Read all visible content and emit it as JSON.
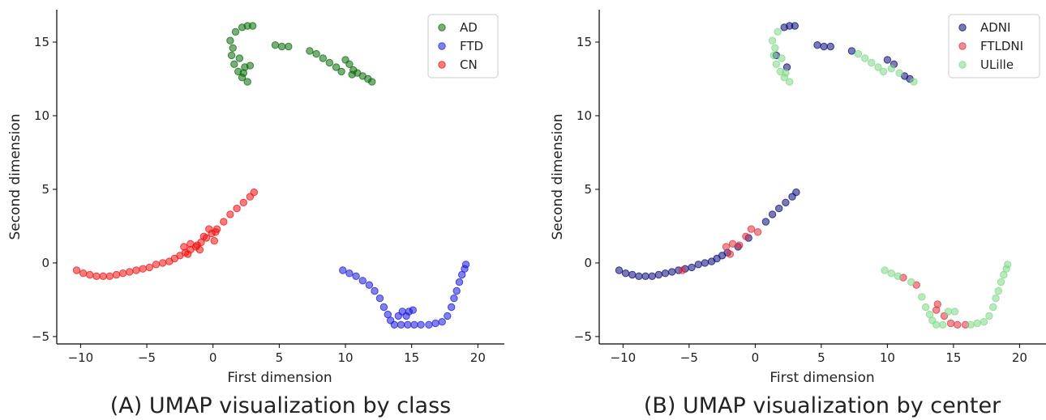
{
  "captions": [
    "(A) UMAP visualization by class",
    "(B) UMAP visualization by center"
  ],
  "chart_data": [
    {
      "type": "scatter",
      "xlabel": "First dimension",
      "ylabel": "Second dimension",
      "xlim": [
        -11.8,
        22
      ],
      "ylim": [
        -5.5,
        17.2
      ],
      "xticks": [
        -10,
        -5,
        0,
        5,
        10,
        15,
        20
      ],
      "yticks": [
        -5,
        0,
        5,
        10,
        15
      ],
      "grid": false,
      "legend_placement": "top-right",
      "series": [
        {
          "name": "AD",
          "color": "#0a6b0a",
          "points": [
            [
              1.3,
              15.1
            ],
            [
              1.5,
              14.6
            ],
            [
              1.4,
              14.1
            ],
            [
              1.6,
              13.5
            ],
            [
              1.9,
              13.0
            ],
            [
              2.2,
              12.6
            ],
            [
              2.6,
              12.3
            ],
            [
              1.7,
              15.7
            ],
            [
              2.2,
              16.0
            ],
            [
              2.6,
              16.1
            ],
            [
              3.0,
              16.1
            ],
            [
              2.4,
              13.3
            ],
            [
              2.8,
              13.4
            ],
            [
              2.0,
              13.9
            ],
            [
              2.3,
              12.9
            ],
            [
              4.7,
              14.8
            ],
            [
              5.2,
              14.7
            ],
            [
              5.7,
              14.7
            ],
            [
              7.3,
              14.4
            ],
            [
              7.8,
              14.2
            ],
            [
              8.3,
              13.9
            ],
            [
              8.8,
              13.6
            ],
            [
              9.3,
              13.3
            ],
            [
              9.7,
              13.0
            ],
            [
              10.0,
              13.8
            ],
            [
              10.3,
              13.5
            ],
            [
              10.6,
              13.1
            ],
            [
              10.9,
              12.9
            ],
            [
              11.3,
              12.7
            ],
            [
              11.7,
              12.5
            ],
            [
              12.0,
              12.3
            ],
            [
              10.5,
              12.8
            ]
          ]
        },
        {
          "name": "FTD",
          "color": "#1a1adb",
          "points": [
            [
              9.8,
              -0.5
            ],
            [
              10.3,
              -0.7
            ],
            [
              10.8,
              -0.9
            ],
            [
              11.3,
              -1.2
            ],
            [
              11.8,
              -1.5
            ],
            [
              12.2,
              -1.9
            ],
            [
              12.6,
              -2.4
            ],
            [
              12.9,
              -3.0
            ],
            [
              13.2,
              -3.5
            ],
            [
              13.4,
              -3.9
            ],
            [
              13.7,
              -4.2
            ],
            [
              14.2,
              -4.2
            ],
            [
              14.7,
              -4.2
            ],
            [
              15.2,
              -4.2
            ],
            [
              15.7,
              -4.2
            ],
            [
              16.3,
              -4.2
            ],
            [
              16.8,
              -4.1
            ],
            [
              17.3,
              -4.0
            ],
            [
              17.7,
              -3.6
            ],
            [
              18.0,
              -3.0
            ],
            [
              18.2,
              -2.4
            ],
            [
              18.4,
              -1.9
            ],
            [
              18.6,
              -1.3
            ],
            [
              18.8,
              -0.8
            ],
            [
              19.0,
              -0.4
            ],
            [
              19.1,
              -0.1
            ],
            [
              14.3,
              -3.3
            ],
            [
              14.8,
              -3.3
            ],
            [
              15.1,
              -3.2
            ],
            [
              14.0,
              -3.6
            ],
            [
              14.6,
              -3.6
            ]
          ]
        },
        {
          "name": "CN",
          "color": "#f01010",
          "points": [
            [
              -10.3,
              -0.5
            ],
            [
              -9.8,
              -0.7
            ],
            [
              -9.3,
              -0.8
            ],
            [
              -8.8,
              -0.9
            ],
            [
              -8.3,
              -0.9
            ],
            [
              -7.8,
              -0.9
            ],
            [
              -7.3,
              -0.8
            ],
            [
              -6.8,
              -0.7
            ],
            [
              -6.3,
              -0.6
            ],
            [
              -5.8,
              -0.5
            ],
            [
              -5.3,
              -0.4
            ],
            [
              -4.8,
              -0.3
            ],
            [
              -4.3,
              -0.1
            ],
            [
              -3.8,
              0.0
            ],
            [
              -3.3,
              0.1
            ],
            [
              -2.9,
              0.3
            ],
            [
              -2.5,
              0.5
            ],
            [
              -2.1,
              0.7
            ],
            [
              -1.7,
              0.9
            ],
            [
              -1.3,
              1.1
            ],
            [
              -0.9,
              1.4
            ],
            [
              -0.5,
              1.7
            ],
            [
              -0.1,
              2.0
            ],
            [
              0.3,
              2.3
            ],
            [
              0.8,
              2.8
            ],
            [
              1.3,
              3.3
            ],
            [
              1.8,
              3.7
            ],
            [
              2.3,
              4.1
            ],
            [
              2.8,
              4.5
            ],
            [
              3.1,
              4.8
            ],
            [
              -2.2,
              1.1
            ],
            [
              -1.7,
              1.3
            ],
            [
              -1.2,
              1.2
            ],
            [
              -0.7,
              1.8
            ],
            [
              -0.3,
              2.3
            ],
            [
              0.2,
              2.1
            ],
            [
              -1.9,
              0.6
            ],
            [
              -1.0,
              0.9
            ],
            [
              0.1,
              1.5
            ]
          ]
        }
      ]
    },
    {
      "type": "scatter",
      "xlabel": "First dimension",
      "ylabel": "Second dimension",
      "xlim": [
        -11.8,
        22
      ],
      "ylim": [
        -5.5,
        17.2
      ],
      "xticks": [
        -10,
        -5,
        0,
        5,
        10,
        15,
        20
      ],
      "yticks": [
        -5,
        0,
        5,
        10,
        15
      ],
      "grid": false,
      "legend_placement": "top-right",
      "series": [
        {
          "name": "ADNI",
          "color": "#0b0b78",
          "points": [
            [
              -10.3,
              -0.5
            ],
            [
              -9.8,
              -0.7
            ],
            [
              -9.3,
              -0.8
            ],
            [
              -8.8,
              -0.9
            ],
            [
              -8.3,
              -0.9
            ],
            [
              -7.8,
              -0.9
            ],
            [
              -7.3,
              -0.8
            ],
            [
              -6.8,
              -0.7
            ],
            [
              -6.3,
              -0.6
            ],
            [
              -5.8,
              -0.5
            ],
            [
              -5.3,
              -0.4
            ],
            [
              -4.8,
              -0.3
            ],
            [
              -4.3,
              -0.1
            ],
            [
              -3.8,
              0.0
            ],
            [
              -3.3,
              0.1
            ],
            [
              -2.9,
              0.3
            ],
            [
              -2.5,
              0.5
            ],
            [
              -2.1,
              0.7
            ],
            [
              -1.3,
              1.1
            ],
            [
              -0.5,
              1.7
            ],
            [
              0.8,
              2.8
            ],
            [
              1.3,
              3.3
            ],
            [
              1.8,
              3.7
            ],
            [
              2.3,
              4.1
            ],
            [
              2.8,
              4.5
            ],
            [
              3.1,
              4.8
            ],
            [
              2.2,
              16.0
            ],
            [
              2.6,
              16.1
            ],
            [
              3.0,
              16.1
            ],
            [
              2.4,
              13.3
            ],
            [
              1.6,
              14.1
            ],
            [
              4.7,
              14.8
            ],
            [
              5.2,
              14.7
            ],
            [
              5.7,
              14.7
            ],
            [
              7.3,
              14.4
            ],
            [
              10.0,
              13.8
            ],
            [
              10.5,
              13.5
            ],
            [
              11.3,
              12.7
            ],
            [
              11.7,
              12.5
            ]
          ]
        },
        {
          "name": "FTLDNI",
          "color": "#e0303c",
          "points": [
            [
              -2.2,
              1.1
            ],
            [
              -1.7,
              1.3
            ],
            [
              -1.2,
              1.2
            ],
            [
              -0.7,
              1.8
            ],
            [
              -0.3,
              2.3
            ],
            [
              0.2,
              2.1
            ],
            [
              -1.9,
              0.6
            ],
            [
              -5.5,
              -0.5
            ],
            [
              11.2,
              -1.0
            ],
            [
              12.2,
              -1.5
            ],
            [
              13.8,
              -2.8
            ],
            [
              14.3,
              -3.6
            ],
            [
              14.8,
              -4.1
            ],
            [
              15.3,
              -4.2
            ],
            [
              15.9,
              -4.2
            ],
            [
              13.7,
              -3.2
            ]
          ]
        },
        {
          "name": "ULille",
          "color": "#7ed887",
          "points": [
            [
              1.3,
              15.1
            ],
            [
              1.5,
              14.6
            ],
            [
              1.4,
              14.1
            ],
            [
              1.6,
              13.5
            ],
            [
              1.9,
              13.0
            ],
            [
              2.2,
              12.6
            ],
            [
              2.6,
              12.3
            ],
            [
              1.7,
              15.7
            ],
            [
              2.0,
              13.9
            ],
            [
              2.3,
              12.9
            ],
            [
              7.8,
              14.2
            ],
            [
              8.3,
              13.9
            ],
            [
              8.8,
              13.6
            ],
            [
              9.3,
              13.3
            ],
            [
              9.7,
              13.0
            ],
            [
              10.3,
              13.2
            ],
            [
              10.9,
              12.9
            ],
            [
              12.0,
              12.3
            ],
            [
              9.8,
              -0.5
            ],
            [
              10.3,
              -0.7
            ],
            [
              10.8,
              -0.9
            ],
            [
              11.8,
              -1.3
            ],
            [
              12.6,
              -2.3
            ],
            [
              12.9,
              -3.0
            ],
            [
              13.2,
              -3.5
            ],
            [
              13.4,
              -3.9
            ],
            [
              13.7,
              -4.2
            ],
            [
              14.2,
              -4.2
            ],
            [
              16.3,
              -4.2
            ],
            [
              16.8,
              -4.1
            ],
            [
              17.3,
              -4.0
            ],
            [
              17.7,
              -3.6
            ],
            [
              18.0,
              -3.0
            ],
            [
              18.2,
              -2.4
            ],
            [
              18.4,
              -1.9
            ],
            [
              18.6,
              -1.3
            ],
            [
              18.8,
              -0.8
            ],
            [
              19.0,
              -0.4
            ],
            [
              19.1,
              -0.1
            ],
            [
              14.6,
              -3.3
            ],
            [
              15.1,
              -3.3
            ]
          ]
        }
      ]
    }
  ]
}
